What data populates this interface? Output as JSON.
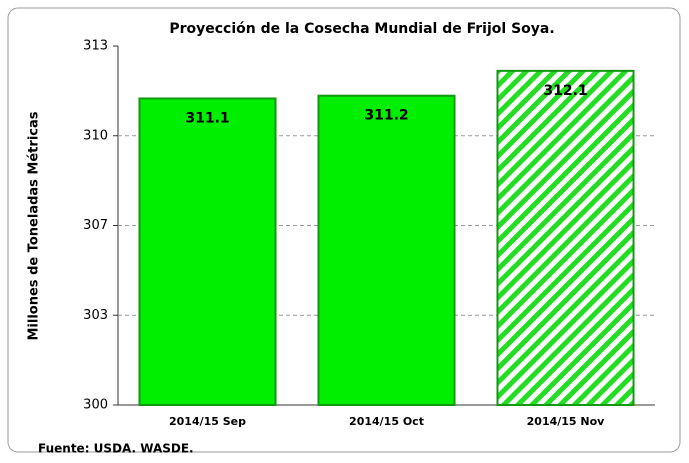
{
  "chart_data": {
    "type": "bar",
    "title": "Proyección de la Cosecha Mundial de Frijol Soya.",
    "y_label": "Millones de Toneladas Métricas",
    "source": "Fuente: USDA.  WASDE.",
    "categories": [
      "2014/15 Sep",
      "2014/15 Oct",
      "2014/15 Nov"
    ],
    "values": [
      311.1,
      311.2,
      312.1
    ],
    "hatch": [
      false,
      false,
      true
    ],
    "color": "#00ee00",
    "ylim": [
      300,
      313
    ],
    "yticks": [
      300,
      {
        "value": 303.25,
        "label": "303"
      },
      {
        "value": 306.5,
        "label": "307"
      },
      {
        "value": 309.75,
        "label": "310"
      },
      313
    ],
    "grid": true
  }
}
